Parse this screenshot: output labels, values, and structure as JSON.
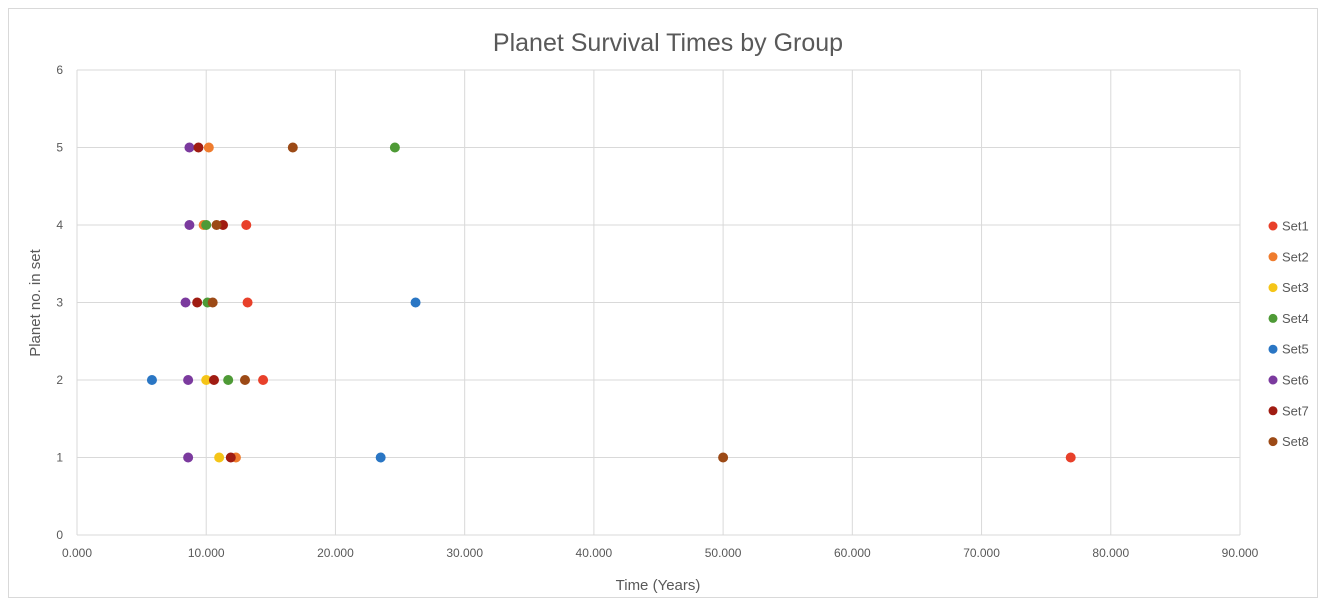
{
  "chart_data": {
    "type": "scatter",
    "title": "Planet Survival Times by Group",
    "xlabel": "Time (Years)",
    "ylabel": "Planet no. in set",
    "xlim": [
      0,
      90
    ],
    "ylim": [
      0,
      6
    ],
    "x_ticks": [
      "0.000",
      "10.000",
      "20.000",
      "30.000",
      "40.000",
      "50.000",
      "60.000",
      "70.000",
      "80.000",
      "90.000"
    ],
    "y_ticks": [
      "0",
      "1",
      "2",
      "3",
      "4",
      "5",
      "6"
    ],
    "grid": "vertical and horizontal",
    "legend_position": "right",
    "series": [
      {
        "name": "Set1",
        "color": "#e8402a",
        "points": [
          [
            76.9,
            1
          ],
          [
            14.4,
            2
          ],
          [
            13.2,
            3
          ],
          [
            13.1,
            4
          ]
        ]
      },
      {
        "name": "Set2",
        "color": "#ef7c2e",
        "points": [
          [
            12.3,
            1
          ],
          [
            9.8,
            4
          ],
          [
            10.2,
            5
          ]
        ]
      },
      {
        "name": "Set3",
        "color": "#f5c518",
        "points": [
          [
            11.0,
            1
          ],
          [
            10.0,
            2
          ]
        ]
      },
      {
        "name": "Set4",
        "color": "#4e9a36",
        "points": [
          [
            11.7,
            2
          ],
          [
            10.1,
            3
          ],
          [
            10.0,
            4
          ],
          [
            24.6,
            5
          ]
        ]
      },
      {
        "name": "Set5",
        "color": "#2a76c4",
        "points": [
          [
            23.5,
            1
          ],
          [
            5.8,
            2
          ],
          [
            26.2,
            3
          ]
        ]
      },
      {
        "name": "Set6",
        "color": "#7b3a9e",
        "points": [
          [
            8.6,
            1
          ],
          [
            8.6,
            2
          ],
          [
            8.4,
            3
          ],
          [
            8.7,
            4
          ],
          [
            8.7,
            5
          ]
        ]
      },
      {
        "name": "Set7",
        "color": "#a01c12",
        "points": [
          [
            11.9,
            1
          ],
          [
            10.6,
            2
          ],
          [
            9.3,
            3
          ],
          [
            11.3,
            4
          ],
          [
            9.4,
            5
          ]
        ]
      },
      {
        "name": "Set8",
        "color": "#9c4a16",
        "points": [
          [
            50.0,
            1
          ],
          [
            13.0,
            2
          ],
          [
            10.5,
            3
          ],
          [
            10.8,
            4
          ],
          [
            16.7,
            5
          ]
        ]
      }
    ]
  }
}
